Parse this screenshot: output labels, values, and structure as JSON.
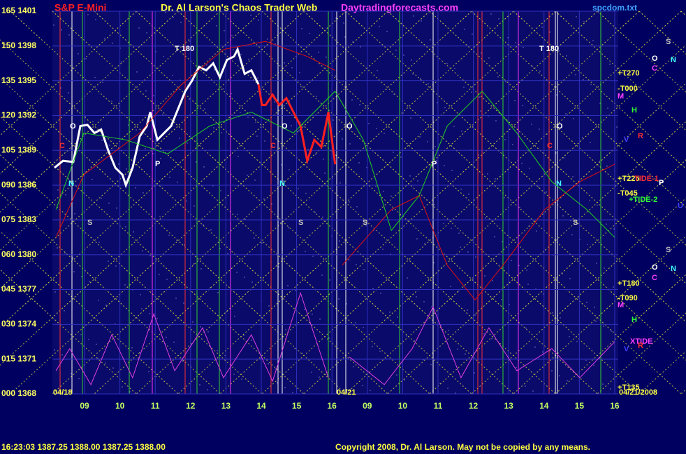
{
  "chart_data": {
    "type": "line",
    "title": "Dr. Al Larson's Chaos Trader Web",
    "subtitle": "S&P E-Mini",
    "site": "Daytradingforecasts.com",
    "file": "spcdom.txt",
    "status": "16:23:03  1387.25 1388.00 1387.25 1388.00",
    "copyright": "Copyright 2008, Dr. Al Larson. May not be copied by any means.",
    "ylim": [
      1368,
      1401
    ],
    "yticks": [
      {
        "value": 1401,
        "label": "165 1401"
      },
      {
        "value": 1398,
        "label": "150 1398"
      },
      {
        "value": 1395,
        "label": "135 1395"
      },
      {
        "value": 1392,
        "label": "120 1392"
      },
      {
        "value": 1389,
        "label": "105 1389"
      },
      {
        "value": 1386,
        "label": "090 1386"
      },
      {
        "value": 1383,
        "label": "075 1383"
      },
      {
        "value": 1380,
        "label": "060 1380"
      },
      {
        "value": 1377,
        "label": "045 1377"
      },
      {
        "value": 1374,
        "label": "030 1374"
      },
      {
        "value": 1371,
        "label": "015 1371"
      },
      {
        "value": 1368,
        "label": "000 1368"
      }
    ],
    "xlim": [
      -0.91,
      15.1
    ],
    "xticks": [
      {
        "value": 0,
        "label": "09"
      },
      {
        "value": 1,
        "label": "10"
      },
      {
        "value": 2,
        "label": "11"
      },
      {
        "value": 3,
        "label": "12"
      },
      {
        "value": 4,
        "label": "13"
      },
      {
        "value": 5,
        "label": "14"
      },
      {
        "value": 6,
        "label": "15"
      },
      {
        "value": 7,
        "label": "16"
      },
      {
        "value": 8,
        "label": "09"
      },
      {
        "value": 9,
        "label": "10"
      },
      {
        "value": 10,
        "label": "11"
      },
      {
        "value": 11,
        "label": "12"
      },
      {
        "value": 12,
        "label": "13"
      },
      {
        "value": 13,
        "label": "14"
      },
      {
        "value": 14,
        "label": "15"
      },
      {
        "value": 15,
        "label": "16"
      }
    ],
    "grid": true,
    "series": [
      {
        "color": "#ffffff",
        "width": 3,
        "x": [
          -0.85,
          -0.61,
          -0.32,
          -0.12,
          0.08,
          0.28,
          0.47,
          0.67,
          0.87,
          1.07,
          1.17,
          1.36,
          1.56,
          1.76,
          1.86,
          2.06,
          2.25,
          2.45,
          2.65,
          2.85,
          3.04,
          3.24,
          3.44,
          3.64,
          3.83,
          4.03,
          4.23,
          4.33,
          4.53,
          4.72,
          4.92
        ],
        "values": [
          1387.5,
          1388.1,
          1388.0,
          1391.1,
          1391.2,
          1390.5,
          1390.8,
          1389.0,
          1387.5,
          1386.9,
          1386.0,
          1387.5,
          1390.2,
          1391.1,
          1392.3,
          1389.9,
          1390.5,
          1391.1,
          1392.6,
          1394.1,
          1395.0,
          1396.2,
          1395.9,
          1396.5,
          1395.3,
          1396.8,
          1397.1,
          1397.7,
          1395.6,
          1395.9,
          1394.7
        ]
      },
      {
        "color": "#ff2020",
        "width": 3,
        "x": [
          4.92,
          5.02,
          5.12,
          5.32,
          5.51,
          5.71,
          5.91,
          6.11,
          6.3,
          6.5,
          6.7,
          6.9,
          7.09
        ],
        "values": [
          1394.7,
          1392.9,
          1392.9,
          1393.8,
          1392.9,
          1393.5,
          1392.3,
          1391.1,
          1388.1,
          1389.9,
          1389.3,
          1392.3,
          1387.8
        ]
      },
      {
        "color": "#e01010",
        "width": 1,
        "x": [
          -0.81,
          -0.02,
          1.56,
          2.75,
          3.93,
          5.12,
          6.3,
          7.09,
          7.2,
          7.29,
          8.68,
          9.47,
          10.26,
          11.05,
          11.84,
          13.02,
          14.01,
          15.0
        ],
        "values": [
          1381.5,
          1386.9,
          1390.5,
          1394.7,
          1397.7,
          1398.4,
          1397.1,
          1395.9,
          null,
          1379.1,
          1383.9,
          1385.1,
          1379.1,
          1376.1,
          1379.1,
          1383.9,
          1386.3,
          1387.8
        ]
      },
      {
        "color": "#20d020",
        "width": 1,
        "x": [
          -0.81,
          -0.02,
          1.17,
          2.35,
          3.54,
          4.72,
          5.91,
          7.09,
          7.89,
          8.68,
          9.47,
          10.26,
          11.25,
          12.23,
          13.22,
          14.21,
          15.0
        ],
        "values": [
          1383.9,
          1390.5,
          1389.9,
          1388.7,
          1391.1,
          1392.3,
          1390.5,
          1394.1,
          1389.9,
          1382.1,
          1385.1,
          1391.1,
          1394.1,
          1390.5,
          1386.3,
          1383.9,
          1381.5
        ]
      },
      {
        "color": "#e040e0",
        "width": 1,
        "x": [
          -0.81,
          -0.42,
          0.18,
          0.77,
          1.36,
          1.96,
          2.55,
          3.34,
          3.93,
          4.72,
          5.32,
          6.11,
          6.9,
          7.1,
          7.49,
          8.48,
          9.27,
          9.86,
          10.65,
          11.44,
          12.23,
          13.22,
          14.01,
          15.0
        ],
        "values": [
          1370.0,
          1371.9,
          1368.8,
          1373.1,
          1369.4,
          1374.9,
          1370.0,
          1373.7,
          1369.4,
          1373.1,
          1369.1,
          1376.7,
          1369.4,
          null,
          1371.2,
          1368.8,
          1371.9,
          1375.5,
          1369.4,
          1373.7,
          1370.0,
          1371.9,
          1369.4,
          1372.5
        ]
      }
    ],
    "annotations": [
      "T 180",
      "T 180",
      "+T270",
      "-T000",
      "+T225",
      "-T045",
      "TIDE-1",
      "+TIDE-2",
      "+T180",
      "-T090",
      "XTIDE",
      "+T135",
      "04/18",
      "04/21",
      "04/21/2008",
      "O",
      "O",
      "O",
      "O",
      "C",
      "C",
      "C",
      "P",
      "P",
      "N",
      "N",
      "N",
      "S",
      "S",
      "S",
      "S",
      "M",
      "M",
      "H",
      "H",
      "V",
      "V",
      "R",
      "R",
      "O",
      "O",
      "C",
      "C",
      "N",
      "N",
      "S",
      "S",
      "P",
      "U"
    ]
  }
}
